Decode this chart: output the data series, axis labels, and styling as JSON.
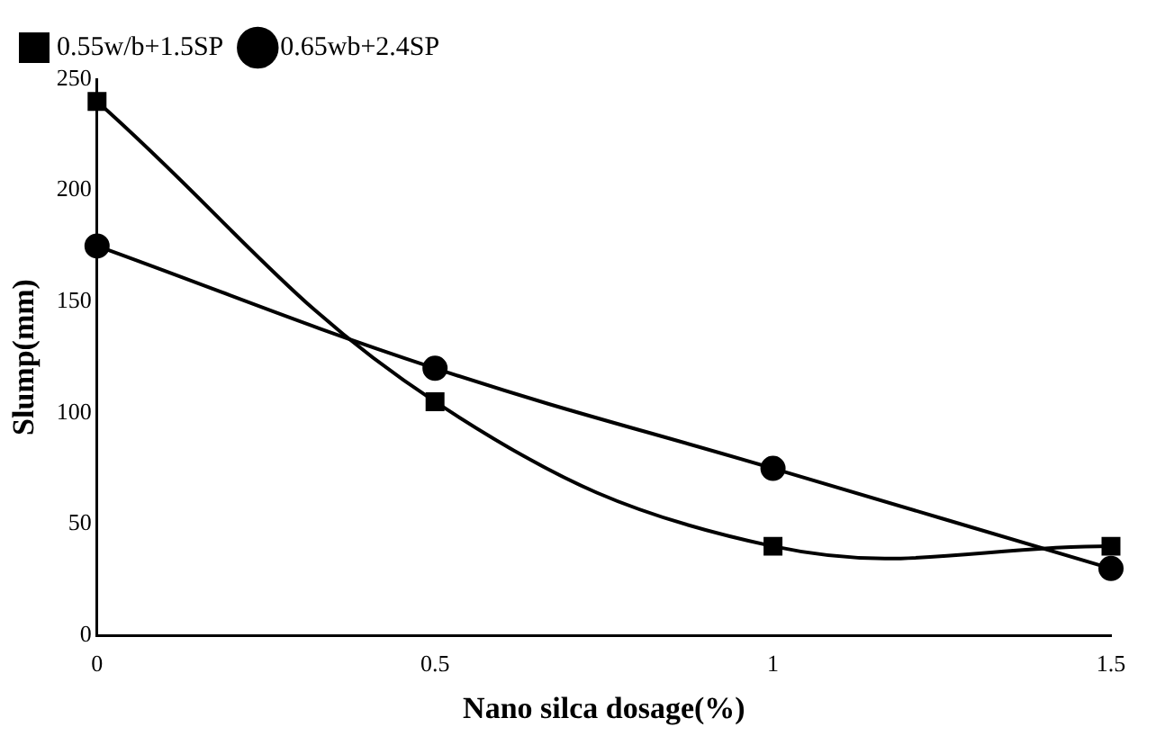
{
  "chart_data": {
    "type": "line",
    "xlabel": "Nano silca dosage(%)",
    "ylabel": "Slump(mm)",
    "x": [
      0,
      0.5,
      1,
      1.5
    ],
    "series": [
      {
        "name": "0.55w/b+1.5SP",
        "color": "#000000",
        "marker": "square",
        "values": [
          240,
          105,
          40,
          40
        ]
      },
      {
        "name": "0.65wb+2.4SP",
        "color": "#000000",
        "marker": "circle",
        "values": [
          175,
          120,
          75,
          30
        ]
      }
    ],
    "xlim": [
      0,
      1.5
    ],
    "xticks": [
      0,
      0.5,
      1,
      1.5
    ],
    "ylim": [
      0,
      250
    ],
    "yticks": [
      0,
      50,
      100,
      150,
      200,
      250
    ],
    "grid": false,
    "legend": "top left",
    "line_style": "solid"
  }
}
